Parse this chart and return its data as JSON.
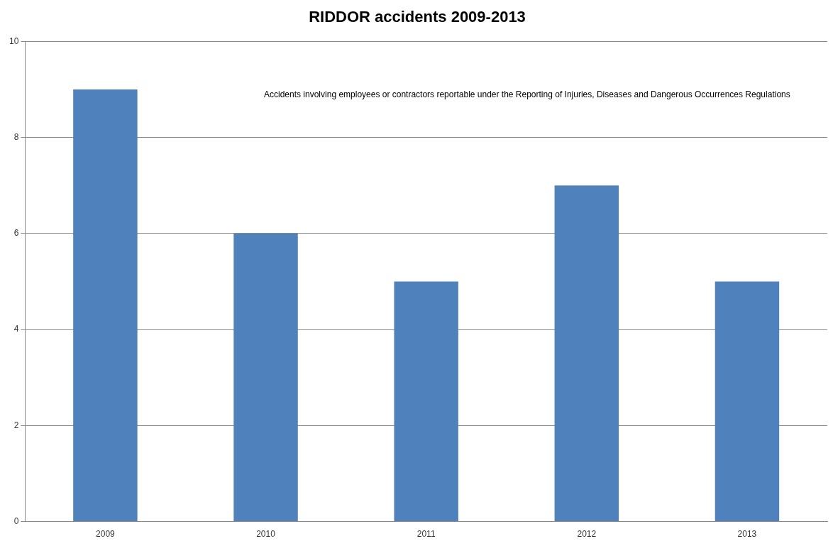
{
  "chart_data": {
    "type": "bar",
    "title": "RIDDOR accidents 2009-2013",
    "categories": [
      "2009",
      "2010",
      "2011",
      "2012",
      "2013"
    ],
    "values": [
      9,
      6,
      5,
      7,
      5
    ],
    "color": "#4f81bd",
    "ylim": [
      0,
      10
    ],
    "yticks": [
      0,
      2,
      4,
      6,
      8,
      10
    ],
    "grid": "y",
    "annotations": [
      "Accidents involving employees or contractors reportable under the Reporting of Injuries, Diseases and Dangerous Occurrences Regulations"
    ]
  }
}
